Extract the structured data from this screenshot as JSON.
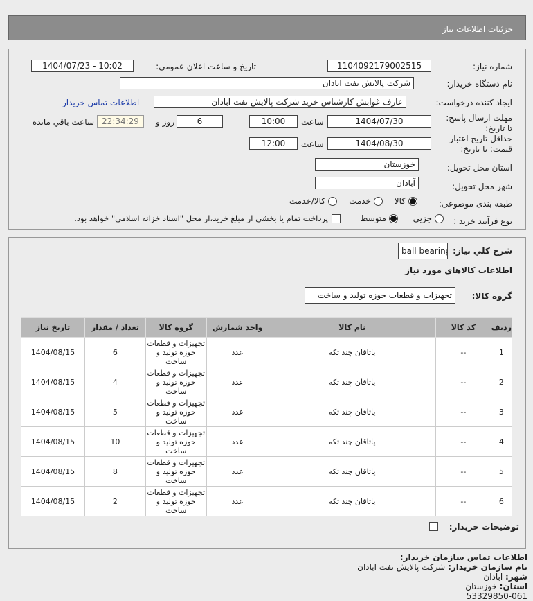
{
  "header": {
    "title": "جزئيات اطلاعات نياز"
  },
  "form": {
    "need_number_label": "شماره نياز:",
    "need_number": "1104092179002515",
    "announce_label": "تاريخ و ساعت اعلان عمومي:",
    "announce_value": "1404/07/23 - 10:02",
    "buyer_org_label": "نام دستگاه خريدار:",
    "buyer_org": "شرکت پالايش نفت ابادان",
    "creator_label": "ايجاد کننده درخواست:",
    "creator": "عارف غوابش کارشناس خريد شرکت پالايش نفت ابادان",
    "contact_link": "اطلاعات تماس خريدار",
    "deadline_label": "مهلت ارسال پاسخ: تا تاريخ:",
    "deadline_date": "1404/07/30",
    "time_label": "ساعت",
    "deadline_time": "10:00",
    "days": "6",
    "days_label": "روز و",
    "remaining": "22:34:29",
    "remaining_label": "ساعت باقي مانده",
    "validity_label": "حداقل تاريخ اعتبار قيمت: تا تاريخ:",
    "validity_date": "1404/08/30",
    "validity_time": "12:00",
    "province_label": "استان محل تحويل:",
    "province": "خوزستان",
    "city_label": "شهر محل تحويل:",
    "city": "آبادان",
    "category_label": "طبقه بندی موضوعی:",
    "category_options": [
      "کالا",
      "خدمت",
      "کالا/خدمت"
    ],
    "category_selected": "کالا",
    "process_label": "نوع فرآيند خريد :",
    "process_options": [
      "جزيي",
      "متوسط"
    ],
    "process_selected": "متوسط",
    "payment_note": "پرداخت تمام يا بخشی از مبلغ خريد،از محل \"اسناد خزانه اسلامی\" خواهد بود."
  },
  "details": {
    "summary_label": "شرح کلي نياز:",
    "summary": "ball bearing",
    "goods_info_title": "اطلاعات کالاهاي مورد نياز",
    "group_label": "گروه کالا:",
    "group": "تجهيزات و قطعات حوزه توليد و ساخت",
    "columns": [
      "رديف",
      "کد کالا",
      "نام کالا",
      "واحد شمارش",
      "گروه کالا",
      "تعداد / مقدار",
      "تاريخ نياز"
    ],
    "rows": [
      [
        "1",
        "--",
        "ياتاقان چند تکه",
        "عدد",
        "تجهيزات و قطعات حوزه توليد و ساخت",
        "6",
        "1404/08/15"
      ],
      [
        "2",
        "--",
        "ياتاقان چند تکه",
        "عدد",
        "تجهيزات و قطعات حوزه توليد و ساخت",
        "4",
        "1404/08/15"
      ],
      [
        "3",
        "--",
        "ياتاقان چند تکه",
        "عدد",
        "تجهيزات و قطعات حوزه توليد و ساخت",
        "5",
        "1404/08/15"
      ],
      [
        "4",
        "--",
        "ياتاقان چند تکه",
        "عدد",
        "تجهيزات و قطعات حوزه توليد و ساخت",
        "10",
        "1404/08/15"
      ],
      [
        "5",
        "--",
        "ياتاقان چند تکه",
        "عدد",
        "تجهيزات و قطعات حوزه توليد و ساخت",
        "8",
        "1404/08/15"
      ],
      [
        "6",
        "--",
        "ياتاقان چند تکه",
        "عدد",
        "تجهيزات و قطعات حوزه توليد و ساخت",
        "2",
        "1404/08/15"
      ]
    ],
    "buyer_notes_label": "توضيحات خريدار:"
  },
  "contact": {
    "title": "اطلاعات تماس سازمان خريدار:",
    "org_label": "نام سازمان خريدار:",
    "org": "شرکت پالايش نفت ابادان",
    "city_label": "شهر:",
    "city": "ابادان",
    "province_label": "استان:",
    "province": "خوزستان",
    "fax_partial": "53329850-061"
  }
}
